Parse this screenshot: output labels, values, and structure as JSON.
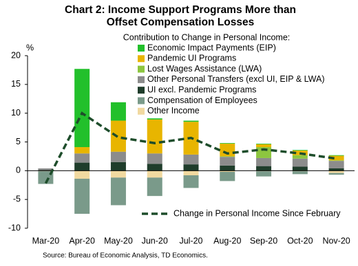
{
  "chart_data": {
    "type": "bar",
    "title": "Chart 2: Income Support Programs More than Offset Compensation Losses",
    "legend_title": "Contribution to Change in Personal Income:",
    "y_label": "%",
    "source": "Source:  Bureau of Economic  Analysis, TD Economics.",
    "categories": [
      "Mar-20",
      "Apr-20",
      "May-20",
      "Jun-20",
      "Jul-20",
      "Aug-20",
      "Sep-20",
      "Oct-20",
      "Nov-20"
    ],
    "ylim": [
      -10,
      20
    ],
    "yticks": [
      -10,
      -5,
      0,
      5,
      10,
      15,
      20
    ],
    "series": [
      {
        "name": "Economic Impact Payments (EIP)",
        "color": "#22c02b",
        "values": [
          0,
          13.6,
          3.2,
          0.2,
          0.2,
          0.1,
          0.1,
          0.1,
          0.1
        ]
      },
      {
        "name": "Pandemic UI Programs",
        "color": "#e8b500",
        "values": [
          0,
          1.1,
          5.4,
          5.9,
          5.7,
          2.2,
          0.5,
          0.8,
          0.8
        ]
      },
      {
        "name": "Lost Wages Assistance (LWA)",
        "color": "#8dc63f",
        "values": [
          0,
          0,
          0,
          0,
          0,
          0.1,
          1.9,
          0.6,
          0.1
        ]
      },
      {
        "name": "Other Personal Transfers (excl UI, EIP & LWA)",
        "color": "#8c8c8c",
        "values": [
          0.3,
          1.6,
          1.8,
          1.8,
          1.7,
          1.5,
          1.4,
          1.4,
          1.3
        ]
      },
      {
        "name": "UI excl. Pandemic Programs",
        "color": "#1f3d2b",
        "values": [
          0.1,
          1.4,
          1.5,
          1.2,
          1.1,
          0.9,
          0.8,
          0.7,
          0.4
        ]
      },
      {
        "name": "Compensation of Employees",
        "color": "#7a9a8a",
        "values": [
          -2.2,
          -6.1,
          -4.8,
          -3.2,
          -2.2,
          -1.6,
          -0.9,
          -0.5,
          -0.3
        ]
      },
      {
        "name": "Other Income",
        "color": "#f1d9a0",
        "values": [
          -0.1,
          -1.4,
          -1.2,
          -1.2,
          -0.8,
          -0.2,
          -0.1,
          -0.1,
          -0.4
        ]
      },
      {
        "name": "Change in Personal Income Since February",
        "type": "line",
        "color": "#1e4d2b",
        "values": [
          -2.2,
          10.0,
          5.8,
          4.8,
          5.7,
          3.0,
          3.7,
          3.0,
          2.1
        ]
      }
    ]
  }
}
